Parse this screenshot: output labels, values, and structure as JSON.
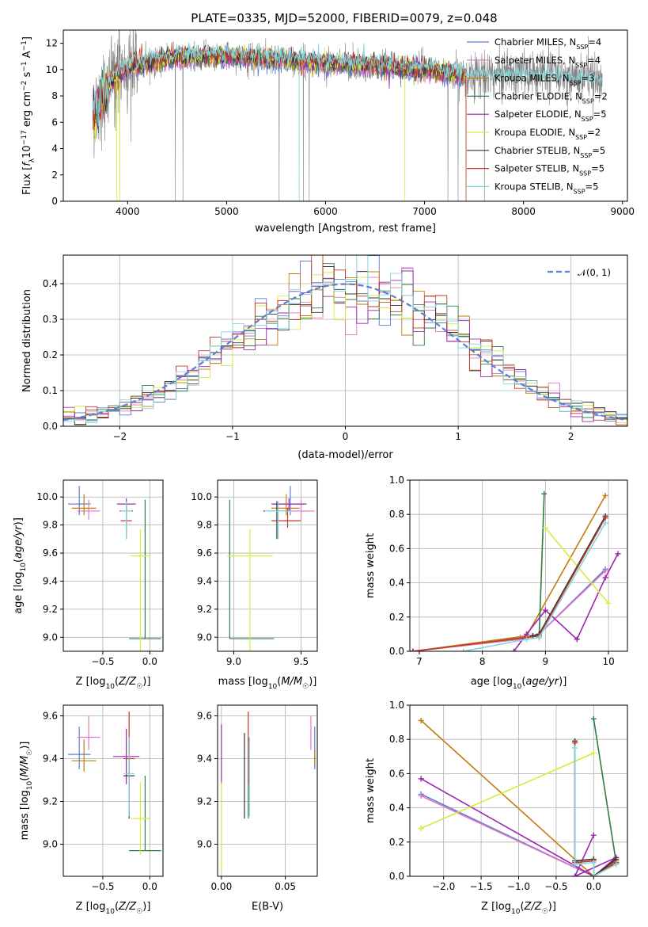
{
  "colors": [
    "#5b7fd6",
    "#e377c2",
    "#c47a0f",
    "#2e7d45",
    "#9c27b0",
    "#d4ec3c",
    "#333333",
    "#c0392b",
    "#7fd8de"
  ],
  "model_names": [
    "Chabrier MILES, N_SSP=4",
    "Salpeter MILES, N_SSP=4",
    "Kroupa MILES, N_SSP=3",
    "Chabrier ELODIE, N_SSP=2",
    "Salpeter ELODIE, N_SSP=5",
    "Kroupa ELODIE, N_SSP=2",
    "Chabrier STELIB, N_SSP=5",
    "Salpeter STELIB, N_SSP=5",
    "Kroupa STELIB, N_SSP=5"
  ],
  "chart_data": [
    {
      "id": "spectrum",
      "type": "line",
      "title": "PLATE=0335, MJD=52000, FIBERID=0079, z=0.048",
      "xlabel": "wavelength [Angstrom, rest frame]",
      "ylabel": "Flux [f_λ 10^-17 erg cm^-2 s^-1 A^-1]",
      "xlim": [
        3350,
        9050
      ],
      "ylim": [
        0,
        13
      ],
      "xticks": [
        4000,
        5000,
        6000,
        7000,
        8000,
        9000
      ],
      "yticks": [
        0,
        2,
        4,
        6,
        8,
        10,
        12
      ],
      "legend": "right",
      "legend_labels": {
        "models": [
          "Chabrier MILES, N",
          "Salpeter MILES, N",
          "Kroupa MILES, N",
          "Chabrier ELODIE, N",
          "Salpeter ELODIE, N",
          "Kroupa ELODIE, N",
          "Chabrier STELIB, N",
          "Salpeter STELIB, N",
          "Kroupa STELIB, N"
        ],
        "sub": "SSP",
        "values": [
          "=4",
          "=4",
          "=3",
          "=2",
          "=5",
          "=2",
          "=5",
          "=5",
          "=5"
        ]
      },
      "data_wavelength_range": [
        3650,
        8800
      ],
      "model_wavelength_range": [
        3650,
        7420
      ],
      "continuum_knots": [
        [
          3650,
          6.5
        ],
        [
          3800,
          8.8
        ],
        [
          4000,
          10.2
        ],
        [
          4500,
          10.9
        ],
        [
          5000,
          11.0
        ],
        [
          5500,
          10.8
        ],
        [
          6000,
          10.5
        ],
        [
          6500,
          10.3
        ],
        [
          7000,
          10.0
        ],
        [
          7400,
          9.6
        ],
        [
          8000,
          9.8
        ],
        [
          8800,
          9.3
        ]
      ]
    },
    {
      "id": "residuals",
      "type": "step",
      "xlabel": "(data-model)/error",
      "ylabel": "Normed distribution",
      "xlim": [
        -2.5,
        2.5
      ],
      "ylim": [
        0,
        0.48
      ],
      "xticks": [
        -2,
        -1,
        0,
        1,
        2
      ],
      "yticks": [
        0.0,
        0.1,
        0.2,
        0.3,
        0.4
      ],
      "bin_width": 0.1,
      "grid": true,
      "legend": "top-right",
      "reference": {
        "name": "𝒩(0, 1)",
        "mu": 0,
        "sigma": 1
      }
    },
    {
      "id": "age-vs-Z",
      "type": "errorbar",
      "xlabel": "Z [log10(Z/Z☉)]",
      "ylabel": "age  [log10(age/yr)]",
      "xlim": [
        -0.92,
        0.14
      ],
      "ylim": [
        8.9,
        10.12
      ],
      "xticks": [
        -0.5,
        0.0
      ],
      "yticks": [
        9.0,
        9.2,
        9.4,
        9.6,
        9.8,
        10.0
      ],
      "grid": true,
      "points": [
        {
          "x": -0.75,
          "xerr": [
            0.12,
            0.12
          ],
          "y": 9.95,
          "yerr": [
            0.08,
            0.13
          ]
        },
        {
          "x": -0.65,
          "xerr": [
            0.12,
            0.12
          ],
          "y": 9.9,
          "yerr": [
            0.06,
            0.08
          ]
        },
        {
          "x": -0.7,
          "xerr": [
            0.13,
            0.13
          ],
          "y": 9.92,
          "yerr": [
            0.05,
            0.1
          ]
        },
        {
          "x": -0.05,
          "xerr": [
            0.17,
            0.17
          ],
          "y": 8.99,
          "yerr": [
            0.0,
            0.99
          ]
        },
        {
          "x": -0.25,
          "xerr": [
            0.1,
            0.1
          ],
          "y": 9.95,
          "yerr": [
            0.05,
            0.04
          ]
        },
        {
          "x": -0.1,
          "xerr": [
            0.11,
            0.11
          ],
          "y": 9.58,
          "yerr": [
            0.68,
            0.19
          ]
        },
        {
          "x": -0.25,
          "xerr": [
            0.07,
            0.07
          ],
          "y": 9.9,
          "yerr": [
            0.2,
            0.07
          ]
        },
        {
          "x": -0.25,
          "xerr": [
            0.06,
            0.06
          ],
          "y": 9.83,
          "yerr": [
            0.05,
            0.09
          ]
        },
        {
          "x": -0.25,
          "xerr": [
            0.06,
            0.06
          ],
          "y": 9.9,
          "yerr": [
            0.2,
            0.07
          ]
        }
      ]
    },
    {
      "id": "age-vs-mass",
      "type": "errorbar",
      "xlabel": "mass [log10(M/M☉)]",
      "ylabel": "",
      "xlim": [
        8.88,
        9.62
      ],
      "ylim": [
        8.9,
        10.12
      ],
      "xticks": [
        9.0,
        9.5
      ],
      "yticks": [
        9.0,
        9.2,
        9.4,
        9.6,
        9.8,
        10.0
      ],
      "grid": true,
      "points": [
        {
          "x": 9.42,
          "xerr": [
            0.13,
            0.1
          ],
          "y": 9.95,
          "yerr": [
            0.08,
            0.13
          ]
        },
        {
          "x": 9.5,
          "xerr": [
            0.1,
            0.1
          ],
          "y": 9.9,
          "yerr": [
            0.06,
            0.08
          ]
        },
        {
          "x": 9.39,
          "xerr": [
            0.11,
            0.1
          ],
          "y": 9.92,
          "yerr": [
            0.05,
            0.1
          ]
        },
        {
          "x": 8.97,
          "xerr": [
            0.0,
            0.33
          ],
          "y": 8.99,
          "yerr": [
            0.0,
            0.99
          ]
        },
        {
          "x": 9.41,
          "xerr": [
            0.13,
            0.13
          ],
          "y": 9.95,
          "yerr": [
            0.05,
            0.04
          ]
        },
        {
          "x": 9.12,
          "xerr": [
            0.17,
            0.17
          ],
          "y": 9.58,
          "yerr": [
            0.68,
            0.19
          ]
        },
        {
          "x": 9.32,
          "xerr": [
            0.1,
            0.1
          ],
          "y": 9.9,
          "yerr": [
            0.2,
            0.07
          ]
        },
        {
          "x": 9.4,
          "xerr": [
            0.12,
            0.1
          ],
          "y": 9.83,
          "yerr": [
            0.05,
            0.09
          ]
        },
        {
          "x": 9.33,
          "xerr": [
            0.1,
            0.1
          ],
          "y": 9.9,
          "yerr": [
            0.2,
            0.07
          ]
        }
      ]
    },
    {
      "id": "weight-vs-age",
      "type": "line",
      "xlabel": "age  [log10(age/yr)]",
      "ylabel": "mass weight",
      "xlim": [
        6.85,
        10.3
      ],
      "ylim": [
        0,
        1.0
      ],
      "xticks": [
        7,
        8,
        9,
        10
      ],
      "yticks": [
        0.0,
        0.2,
        0.4,
        0.6,
        0.8,
        1.0
      ],
      "grid": true,
      "series": [
        {
          "x": [
            6.9,
            8.6,
            8.9,
            9.95
          ],
          "y": [
            0.0,
            0.08,
            0.1,
            0.48
          ]
        },
        {
          "x": [
            6.9,
            8.6,
            8.9,
            9.95
          ],
          "y": [
            0.0,
            0.07,
            0.1,
            0.47
          ]
        },
        {
          "x": [
            6.9,
            8.7,
            9.95
          ],
          "y": [
            0.0,
            0.09,
            0.91
          ]
        },
        {
          "x": [
            8.9,
            8.98
          ],
          "y": [
            0.08,
            0.92
          ]
        },
        {
          "x": [
            8.5,
            8.7,
            9.0,
            9.5,
            9.95,
            10.15
          ],
          "y": [
            0.0,
            0.1,
            0.24,
            0.07,
            0.43,
            0.57
          ]
        },
        {
          "x": [
            9.0,
            10.0
          ],
          "y": [
            0.72,
            0.28
          ]
        },
        {
          "x": [
            8.8,
            8.9,
            9.95
          ],
          "y": [
            0.09,
            0.1,
            0.79
          ]
        },
        {
          "x": [
            6.9,
            8.7,
            8.9,
            9.95
          ],
          "y": [
            0.0,
            0.08,
            0.09,
            0.78
          ]
        },
        {
          "x": [
            7.7,
            8.7,
            8.9,
            9.95
          ],
          "y": [
            0.0,
            0.07,
            0.08,
            0.75
          ]
        }
      ]
    },
    {
      "id": "mass-vs-Z",
      "type": "errorbar",
      "xlabel": "Z [log10(Z/Z☉)]",
      "ylabel": "mass [log10(M/M☉)]",
      "xlim": [
        -0.92,
        0.14
      ],
      "ylim": [
        8.85,
        9.65
      ],
      "xticks": [
        -0.5,
        0.0
      ],
      "yticks": [
        9.0,
        9.2,
        9.4,
        9.6
      ],
      "grid": true,
      "points": [
        {
          "x": -0.75,
          "xerr": [
            0.12,
            0.12
          ],
          "y": 9.42,
          "yerr": [
            0.07,
            0.13
          ]
        },
        {
          "x": -0.65,
          "xerr": [
            0.12,
            0.12
          ],
          "y": 9.5,
          "yerr": [
            0.06,
            0.1
          ]
        },
        {
          "x": -0.7,
          "xerr": [
            0.13,
            0.13
          ],
          "y": 9.39,
          "yerr": [
            0.05,
            0.1
          ]
        },
        {
          "x": -0.05,
          "xerr": [
            0.17,
            0.17
          ],
          "y": 8.97,
          "yerr": [
            0.0,
            0.35
          ]
        },
        {
          "x": -0.25,
          "xerr": [
            0.14,
            0.14
          ],
          "y": 9.41,
          "yerr": [
            0.13,
            0.13
          ]
        },
        {
          "x": -0.1,
          "xerr": [
            0.1,
            0.1
          ],
          "y": 9.12,
          "yerr": [
            0.17,
            0.17
          ]
        },
        {
          "x": -0.22,
          "xerr": [
            0.06,
            0.06
          ],
          "y": 9.32,
          "yerr": [
            0.2,
            0.17
          ]
        },
        {
          "x": -0.22,
          "xerr": [
            0.06,
            0.06
          ],
          "y": 9.4,
          "yerr": [
            0.12,
            0.22
          ]
        },
        {
          "x": -0.22,
          "xerr": [
            0.06,
            0.06
          ],
          "y": 9.33,
          "yerr": [
            0.2,
            0.17
          ]
        }
      ]
    },
    {
      "id": "mass-vs-EBV",
      "type": "errorbar",
      "xlabel": "E(B-V)",
      "ylabel": "",
      "xlim": [
        -0.003,
        0.075
      ],
      "ylim": [
        8.85,
        9.65
      ],
      "xticks": [
        0.0,
        0.05
      ],
      "yticks": [
        9.0,
        9.2,
        9.4,
        9.6
      ],
      "grid": true,
      "points": [
        {
          "x": 0.073,
          "xerr": [
            0,
            0
          ],
          "y": 9.42,
          "yerr": [
            0.07,
            0.13
          ]
        },
        {
          "x": 0.07,
          "xerr": [
            0,
            0
          ],
          "y": 9.5,
          "yerr": [
            0.06,
            0.1
          ]
        },
        {
          "x": 0.073,
          "xerr": [
            0,
            0
          ],
          "y": 9.39,
          "yerr": [
            0.02,
            0.05
          ]
        },
        {
          "x": 0.021,
          "xerr": [
            0,
            0
          ],
          "y": 9.32,
          "yerr": [
            0.2,
            0.18
          ]
        },
        {
          "x": 0.0,
          "xerr": [
            0,
            0
          ],
          "y": 9.41,
          "yerr": [
            0.13,
            0.15
          ]
        },
        {
          "x": 0.0,
          "xerr": [
            0,
            0
          ],
          "y": 9.12,
          "yerr": [
            0.25,
            0.17
          ]
        },
        {
          "x": 0.018,
          "xerr": [
            0,
            0
          ],
          "y": 9.32,
          "yerr": [
            0.2,
            0.2
          ]
        },
        {
          "x": 0.021,
          "xerr": [
            0,
            0
          ],
          "y": 9.4,
          "yerr": [
            0.12,
            0.22
          ]
        },
        {
          "x": 0.022,
          "xerr": [
            0,
            0
          ],
          "y": 9.33,
          "yerr": [
            0.2,
            0.17
          ]
        }
      ]
    },
    {
      "id": "weight-vs-Z",
      "type": "line",
      "xlabel": "Z [log10(Z/Z☉)]",
      "ylabel": "mass weight",
      "xlim": [
        -2.45,
        0.45
      ],
      "ylim": [
        0,
        1.0
      ],
      "xticks": [
        -2.0,
        -1.5,
        -1.0,
        -0.5,
        0.0
      ],
      "yticks": [
        0.0,
        0.2,
        0.4,
        0.6,
        0.8,
        1.0
      ],
      "grid": true,
      "series": [
        {
          "x": [
            -2.3,
            0.0,
            0.3
          ],
          "y": [
            0.48,
            0.0,
            0.08
          ]
        },
        {
          "x": [
            -2.3,
            0.0,
            0.3
          ],
          "y": [
            0.47,
            0.0,
            0.08
          ]
        },
        {
          "x": [
            -2.3,
            0.0,
            0.3
          ],
          "y": [
            0.91,
            0.0,
            0.09
          ]
        },
        {
          "x": [
            0.0,
            0.3
          ],
          "y": [
            0.92,
            0.08
          ]
        },
        {
          "x": [
            -2.3,
            0.0,
            0.3,
            -0.25,
            0.0
          ],
          "y": [
            0.57,
            0.0,
            0.11,
            0.0,
            0.24
          ]
        },
        {
          "x": [
            -2.3,
            0.0
          ],
          "y": [
            0.28,
            0.72
          ]
        },
        {
          "x": [
            -0.25,
            -0.25,
            0.0,
            0.0,
            0.3
          ],
          "y": [
            0.79,
            0.09,
            0.1,
            0.0,
            0.1
          ]
        },
        {
          "x": [
            -0.25,
            -0.25,
            0.0,
            0.0,
            0.3
          ],
          "y": [
            0.78,
            0.08,
            0.09,
            0.0,
            0.08
          ]
        },
        {
          "x": [
            -0.25,
            -0.25,
            0.0,
            0.0,
            0.3
          ],
          "y": [
            0.75,
            0.07,
            0.08,
            0.0,
            0.07
          ]
        }
      ]
    }
  ]
}
